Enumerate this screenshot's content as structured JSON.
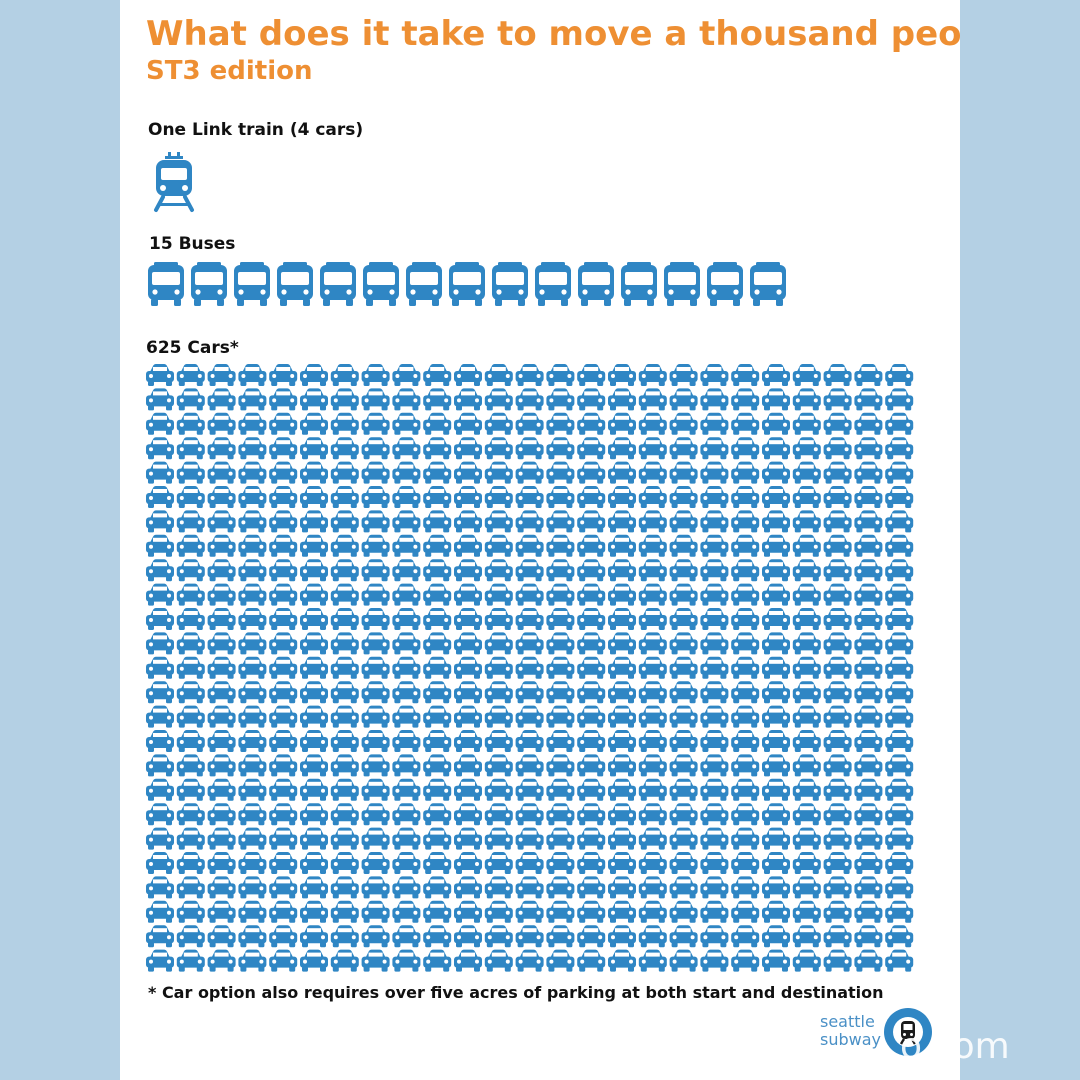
{
  "title": "What does it take to move a thousand people?",
  "subtitle": "ST3 edition",
  "sections": {
    "train": {
      "label": "One Link train (4 cars)",
      "count": 1,
      "icon": "train-icon"
    },
    "buses": {
      "label": "15 Buses",
      "count": 15,
      "icon": "bus-icon"
    },
    "cars": {
      "label": "625 Cars*",
      "count": 625,
      "columns": 25,
      "icon": "car-icon"
    }
  },
  "footnote": "* Car option also requires over five acres of parking at both start and destination",
  "brand": {
    "line1": "seattle",
    "line2": "subway",
    "icon": "seattle-subway-logo-icon"
  },
  "watermark": "o.com",
  "colors": {
    "title": "#ee8f33",
    "icon": "#2f86c4",
    "background": "#b4d0e4"
  }
}
